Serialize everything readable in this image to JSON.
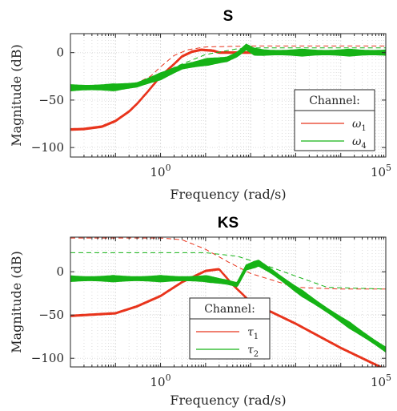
{
  "chart_data": [
    {
      "type": "line",
      "title": "S",
      "xlabel": "Frequency (rad/s)",
      "ylabel": "Magnitude (dB)",
      "xscale": "log",
      "xlim": [
        0.01,
        100000
      ],
      "ylim": [
        -110,
        20
      ],
      "yticks": [
        0,
        -50,
        -100
      ],
      "ytick_labels": [
        "0",
        "-50",
        "-100"
      ],
      "xtick_labels": [
        {
          "base": "10",
          "exp": "0",
          "value": 1
        },
        {
          "base": "10",
          "exp": "5",
          "value": 100000
        }
      ],
      "grid": true,
      "legend": {
        "title": "Channel:",
        "placement": "lower-right"
      },
      "series": [
        {
          "name": "ω",
          "sub": "1",
          "color": "#e8341c",
          "solid": [
            [
              0.01,
              -81
            ],
            [
              0.02,
              -80.5
            ],
            [
              0.05,
              -78
            ],
            [
              0.1,
              -72
            ],
            [
              0.2,
              -62
            ],
            [
              0.3,
              -54
            ],
            [
              0.5,
              -42
            ],
            [
              1,
              -25
            ],
            [
              2,
              -12
            ],
            [
              3,
              -4
            ],
            [
              5,
              1
            ],
            [
              8,
              3
            ],
            [
              15,
              2
            ],
            [
              20,
              0
            ],
            [
              40,
              0
            ],
            [
              100000,
              0
            ]
          ],
          "dashed": [
            [
              0.01,
              -36
            ],
            [
              0.1,
              -35
            ],
            [
              0.3,
              -32
            ],
            [
              0.6,
              -25
            ],
            [
              1,
              -15
            ],
            [
              2,
              -3
            ],
            [
              4,
              3
            ],
            [
              10,
              6
            ],
            [
              100,
              7
            ],
            [
              100000,
              7
            ]
          ]
        },
        {
          "name": "ω",
          "sub": "4",
          "color": "#16b316",
          "solid": [
            [
              0.01,
              -37
            ],
            [
              0.1,
              -36.5
            ],
            [
              0.3,
              -34
            ],
            [
              1,
              -25
            ],
            [
              3,
              -15
            ],
            [
              10,
              -10
            ],
            [
              30,
              -7
            ],
            [
              50,
              -2
            ],
            [
              80,
              6
            ],
            [
              120,
              1
            ],
            [
              200,
              0
            ],
            [
              100000,
              0
            ]
          ],
          "solid_spread": 7,
          "dashed": [
            [
              0.01,
              -35
            ],
            [
              0.3,
              -33
            ],
            [
              1,
              -22
            ],
            [
              3,
              -12
            ],
            [
              10,
              -2
            ],
            [
              50,
              4
            ],
            [
              100,
              5
            ],
            [
              100000,
              5
            ]
          ]
        }
      ]
    },
    {
      "type": "line",
      "title": "KS",
      "xlabel": "Frequency (rad/s)",
      "ylabel": "Magnitude (dB)",
      "xscale": "log",
      "xlim": [
        0.01,
        100000
      ],
      "ylim": [
        -110,
        40
      ],
      "yticks": [
        0,
        -50,
        -100
      ],
      "ytick_labels": [
        "0",
        "-50",
        "-100"
      ],
      "xtick_labels": [
        {
          "base": "10",
          "exp": "0",
          "value": 1
        },
        {
          "base": "10",
          "exp": "5",
          "value": 100000
        }
      ],
      "grid": true,
      "legend": {
        "title": "Channel:",
        "placement": "lower-center"
      },
      "series": [
        {
          "name": "τ",
          "sub": "1",
          "color": "#e8341c",
          "solid": [
            [
              0.01,
              -51
            ],
            [
              0.1,
              -48
            ],
            [
              0.3,
              -40
            ],
            [
              1,
              -28
            ],
            [
              3,
              -12
            ],
            [
              10,
              1
            ],
            [
              20,
              3
            ],
            [
              40,
              -15
            ],
            [
              100,
              -35
            ],
            [
              1000,
              -60
            ],
            [
              10000,
              -88
            ],
            [
              100000,
              -113
            ]
          ],
          "dashed": [
            [
              0.01,
              39
            ],
            [
              1,
              39
            ],
            [
              3,
              37
            ],
            [
              10,
              26
            ],
            [
              30,
              12
            ],
            [
              100,
              -2
            ],
            [
              1000,
              -18
            ],
            [
              10000,
              -20
            ],
            [
              100000,
              -20
            ]
          ]
        },
        {
          "name": "τ",
          "sub": "2",
          "color": "#16b316",
          "solid": [
            [
              0.01,
              -8
            ],
            [
              1,
              -8
            ],
            [
              10,
              -8
            ],
            [
              30,
              -12
            ],
            [
              50,
              -15
            ],
            [
              80,
              5
            ],
            [
              150,
              10
            ],
            [
              300,
              0
            ],
            [
              1000,
              -20
            ],
            [
              10000,
              -55
            ],
            [
              100000,
              -90
            ]
          ],
          "solid_spread": 7,
          "dashed": [
            [
              0.01,
              22
            ],
            [
              1,
              22
            ],
            [
              10,
              22
            ],
            [
              50,
              18
            ],
            [
              200,
              8
            ],
            [
              1000,
              -5
            ],
            [
              5000,
              -18
            ],
            [
              100000,
              -20
            ]
          ]
        }
      ]
    }
  ]
}
